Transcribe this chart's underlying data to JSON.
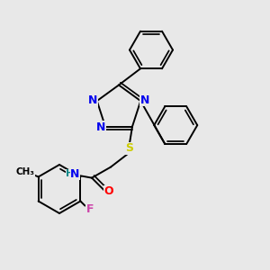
{
  "background_color": "#e8e8e8",
  "atom_colors": {
    "N": "#0000ee",
    "S": "#cccc00",
    "O": "#ff0000",
    "F": "#cc44aa",
    "H": "#008888",
    "C": "#000000"
  },
  "font_size_atom": 9,
  "line_width": 1.4
}
